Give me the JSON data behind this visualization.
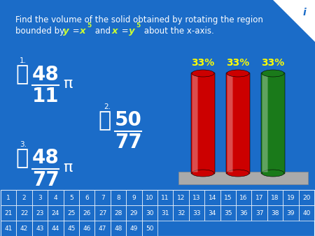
{
  "bg_color": "#1B6CC8",
  "bar_colors": [
    "#CC0000",
    "#CC0000",
    "#1A7A1A"
  ],
  "bar_labels": [
    "33%",
    "33%",
    "33%"
  ],
  "text_color": "#FFFFFF",
  "yellow_color": "#FFFF00",
  "accent_color": "#CCFF33",
  "grid_rows": 3,
  "grid_cols": 20,
  "answer1_num": "48",
  "answer1_den": "11",
  "answer2_num": "50",
  "answer2_den": "77",
  "answer3_num": "48",
  "answer3_den": "77"
}
